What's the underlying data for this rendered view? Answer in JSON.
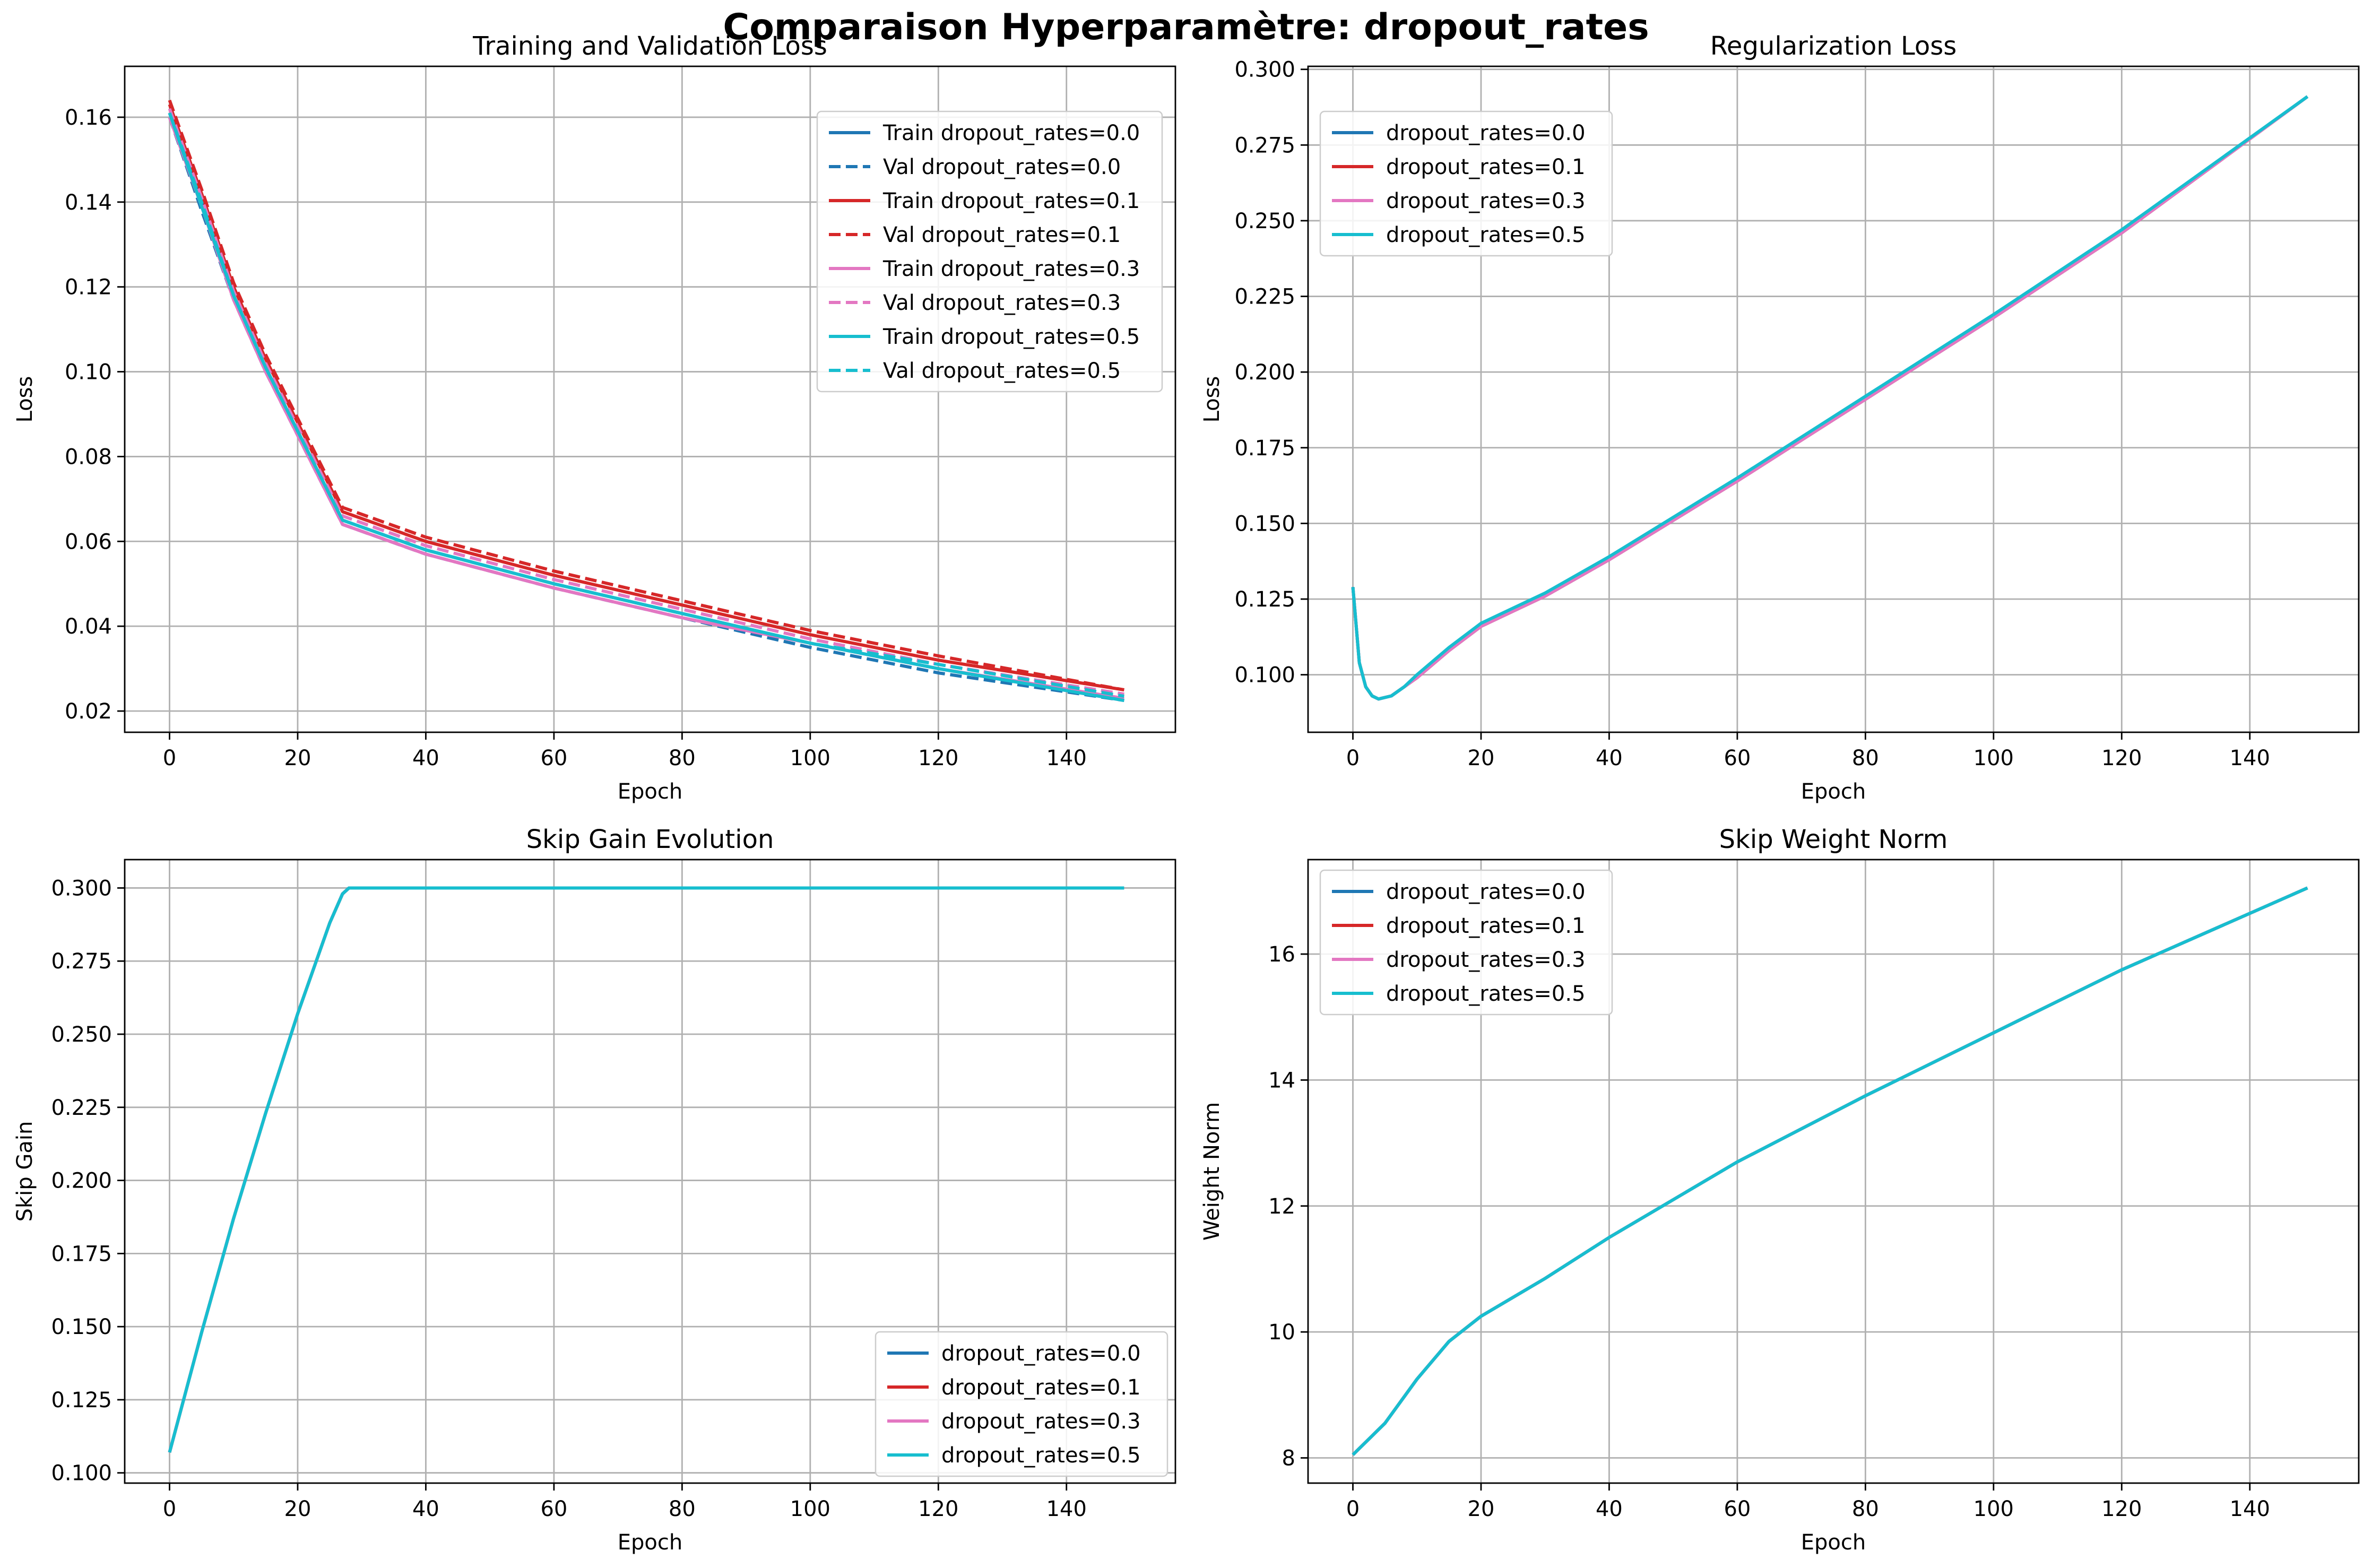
{
  "suptitle": "Comparaison Hyperparamètre: dropout_rates",
  "colors": {
    "d00": "#1f77b4",
    "d01": "#d62728",
    "d03": "#e377c2",
    "d05": "#17becf"
  },
  "chart_data": [
    {
      "id": "loss",
      "type": "line",
      "title": "Training and Validation Loss",
      "xlabel": "Epoch",
      "ylabel": "Loss",
      "xlim": [
        -7,
        157
      ],
      "ylim": [
        0.015,
        0.172
      ],
      "xticks": [
        0,
        20,
        40,
        60,
        80,
        100,
        120,
        140
      ],
      "yticks": [
        0.02,
        0.04,
        0.06,
        0.08,
        0.1,
        0.12,
        0.14,
        0.16
      ],
      "ytick_labels": [
        "0.02",
        "0.04",
        "0.06",
        "0.08",
        "0.10",
        "0.12",
        "0.14",
        "0.16"
      ],
      "grid": true,
      "legend": "top-right",
      "series": [
        {
          "name": "Train dropout_rates=0.0",
          "color": "#1f77b4",
          "style": "solid",
          "x": [
            0,
            5,
            10,
            15,
            20,
            27,
            40,
            60,
            80,
            100,
            120,
            149
          ],
          "y": [
            0.161,
            0.14,
            0.118,
            0.101,
            0.086,
            0.065,
            0.058,
            0.05,
            0.043,
            0.036,
            0.03,
            0.0225
          ]
        },
        {
          "name": "Val dropout_rates=0.0",
          "color": "#1f77b4",
          "style": "dashed",
          "x": [
            0,
            5,
            10,
            15,
            20,
            27,
            40,
            60,
            80,
            100,
            120,
            149
          ],
          "y": [
            0.16,
            0.138,
            0.117,
            0.1,
            0.085,
            0.064,
            0.057,
            0.049,
            0.042,
            0.035,
            0.029,
            0.0225
          ]
        },
        {
          "name": "Train dropout_rates=0.1",
          "color": "#d62728",
          "style": "solid",
          "x": [
            0,
            5,
            10,
            15,
            20,
            27,
            40,
            60,
            80,
            100,
            120,
            149
          ],
          "y": [
            0.163,
            0.142,
            0.12,
            0.103,
            0.088,
            0.067,
            0.06,
            0.052,
            0.045,
            0.038,
            0.032,
            0.025
          ]
        },
        {
          "name": "Val dropout_rates=0.1",
          "color": "#d62728",
          "style": "dashed",
          "x": [
            0,
            5,
            10,
            15,
            20,
            27,
            40,
            60,
            80,
            100,
            120,
            149
          ],
          "y": [
            0.164,
            0.143,
            0.121,
            0.104,
            0.089,
            0.068,
            0.061,
            0.053,
            0.046,
            0.039,
            0.033,
            0.025
          ]
        },
        {
          "name": "Train dropout_rates=0.3",
          "color": "#e377c2",
          "style": "solid",
          "x": [
            0,
            5,
            10,
            15,
            20,
            27,
            40,
            60,
            80,
            100,
            120,
            149
          ],
          "y": [
            0.16,
            0.139,
            0.117,
            0.1,
            0.085,
            0.064,
            0.057,
            0.049,
            0.042,
            0.036,
            0.03,
            0.023
          ]
        },
        {
          "name": "Val dropout_rates=0.3",
          "color": "#e377c2",
          "style": "dashed",
          "x": [
            0,
            5,
            10,
            15,
            20,
            27,
            40,
            60,
            80,
            100,
            120,
            149
          ],
          "y": [
            0.162,
            0.141,
            0.119,
            0.102,
            0.087,
            0.066,
            0.059,
            0.051,
            0.044,
            0.037,
            0.031,
            0.024
          ]
        },
        {
          "name": "Train dropout_rates=0.5",
          "color": "#17becf",
          "style": "solid",
          "x": [
            0,
            5,
            10,
            15,
            20,
            27,
            40,
            60,
            80,
            100,
            120,
            149
          ],
          "y": [
            0.161,
            0.139,
            0.118,
            0.101,
            0.086,
            0.065,
            0.058,
            0.05,
            0.043,
            0.036,
            0.03,
            0.0225
          ]
        },
        {
          "name": "Val dropout_rates=0.5",
          "color": "#17becf",
          "style": "dashed",
          "x": [
            0,
            5,
            10,
            15,
            20,
            27,
            40,
            60,
            80,
            100,
            120,
            149
          ],
          "y": [
            0.161,
            0.14,
            0.118,
            0.101,
            0.086,
            0.065,
            0.058,
            0.05,
            0.043,
            0.036,
            0.031,
            0.0235
          ]
        }
      ]
    },
    {
      "id": "reg",
      "type": "line",
      "title": "Regularization Loss",
      "xlabel": "Epoch",
      "ylabel": "Loss",
      "xlim": [
        -7,
        157
      ],
      "ylim": [
        0.081,
        0.301
      ],
      "xticks": [
        0,
        20,
        40,
        60,
        80,
        100,
        120,
        140
      ],
      "yticks": [
        0.1,
        0.125,
        0.15,
        0.175,
        0.2,
        0.225,
        0.25,
        0.275,
        0.3
      ],
      "ytick_labels": [
        "0.100",
        "0.125",
        "0.150",
        "0.175",
        "0.200",
        "0.225",
        "0.250",
        "0.275",
        "0.300"
      ],
      "grid": true,
      "legend": "top-left",
      "series": [
        {
          "name": "dropout_rates=0.0",
          "color": "#1f77b4",
          "style": "solid",
          "x": [
            0,
            1,
            2,
            3,
            4,
            6,
            8,
            10,
            15,
            20,
            25,
            30,
            40,
            60,
            80,
            100,
            120,
            149
          ],
          "y": [
            0.129,
            0.104,
            0.096,
            0.093,
            0.092,
            0.093,
            0.096,
            0.099,
            0.108,
            0.116,
            0.121,
            0.126,
            0.138,
            0.164,
            0.191,
            0.218,
            0.246,
            0.291
          ]
        },
        {
          "name": "dropout_rates=0.1",
          "color": "#d62728",
          "style": "solid",
          "x": [
            0,
            1,
            2,
            3,
            4,
            6,
            8,
            10,
            15,
            20,
            25,
            30,
            40,
            60,
            80,
            100,
            120,
            149
          ],
          "y": [
            0.129,
            0.104,
            0.096,
            0.093,
            0.092,
            0.093,
            0.096,
            0.099,
            0.108,
            0.116,
            0.121,
            0.126,
            0.138,
            0.164,
            0.191,
            0.218,
            0.246,
            0.291
          ]
        },
        {
          "name": "dropout_rates=0.3",
          "color": "#e377c2",
          "style": "solid",
          "x": [
            0,
            1,
            2,
            3,
            4,
            6,
            8,
            10,
            15,
            20,
            25,
            30,
            40,
            60,
            80,
            100,
            120,
            149
          ],
          "y": [
            0.129,
            0.104,
            0.096,
            0.093,
            0.092,
            0.093,
            0.096,
            0.099,
            0.108,
            0.116,
            0.121,
            0.126,
            0.138,
            0.164,
            0.191,
            0.218,
            0.246,
            0.291
          ]
        },
        {
          "name": "dropout_rates=0.5",
          "color": "#17becf",
          "style": "solid",
          "x": [
            0,
            1,
            2,
            3,
            4,
            6,
            8,
            10,
            15,
            20,
            25,
            30,
            40,
            60,
            80,
            100,
            120,
            149
          ],
          "y": [
            0.129,
            0.104,
            0.096,
            0.093,
            0.092,
            0.093,
            0.096,
            0.1,
            0.109,
            0.117,
            0.122,
            0.127,
            0.139,
            0.165,
            0.192,
            0.219,
            0.247,
            0.291
          ]
        }
      ]
    },
    {
      "id": "skip",
      "type": "line",
      "title": "Skip Gain Evolution",
      "xlabel": "Epoch",
      "ylabel": "Skip Gain",
      "xlim": [
        -7,
        157
      ],
      "ylim": [
        0.0965,
        0.3097
      ],
      "xticks": [
        0,
        20,
        40,
        60,
        80,
        100,
        120,
        140
      ],
      "yticks": [
        0.1,
        0.125,
        0.15,
        0.175,
        0.2,
        0.225,
        0.25,
        0.275,
        0.3
      ],
      "ytick_labels": [
        "0.100",
        "0.125",
        "0.150",
        "0.175",
        "0.200",
        "0.225",
        "0.250",
        "0.275",
        "0.300"
      ],
      "grid": true,
      "legend": "bottom-right",
      "series": [
        {
          "name": "dropout_rates=0.0",
          "color": "#1f77b4",
          "style": "solid",
          "x": [
            0,
            5,
            10,
            15,
            20,
            25,
            27,
            28,
            149
          ],
          "y": [
            0.107,
            0.148,
            0.187,
            0.223,
            0.257,
            0.288,
            0.298,
            0.3,
            0.3
          ]
        },
        {
          "name": "dropout_rates=0.1",
          "color": "#d62728",
          "style": "solid",
          "x": [
            0,
            5,
            10,
            15,
            20,
            25,
            27,
            28,
            149
          ],
          "y": [
            0.107,
            0.148,
            0.187,
            0.223,
            0.257,
            0.288,
            0.298,
            0.3,
            0.3
          ]
        },
        {
          "name": "dropout_rates=0.3",
          "color": "#e377c2",
          "style": "solid",
          "x": [
            0,
            5,
            10,
            15,
            20,
            25,
            27,
            28,
            149
          ],
          "y": [
            0.107,
            0.148,
            0.187,
            0.223,
            0.257,
            0.288,
            0.298,
            0.3,
            0.3
          ]
        },
        {
          "name": "dropout_rates=0.5",
          "color": "#17becf",
          "style": "solid",
          "x": [
            0,
            5,
            10,
            15,
            20,
            25,
            27,
            28,
            149
          ],
          "y": [
            0.107,
            0.148,
            0.187,
            0.223,
            0.257,
            0.288,
            0.298,
            0.3,
            0.3
          ]
        }
      ]
    },
    {
      "id": "norm",
      "type": "line",
      "title": "Skip Weight Norm",
      "xlabel": "Epoch",
      "ylabel": "Weight Norm",
      "xlim": [
        -7,
        157
      ],
      "ylim": [
        7.6,
        17.5
      ],
      "xticks": [
        0,
        20,
        40,
        60,
        80,
        100,
        120,
        140
      ],
      "yticks": [
        8,
        10,
        12,
        14,
        16
      ],
      "ytick_labels": [
        "8",
        "10",
        "12",
        "14",
        "16"
      ],
      "grid": true,
      "legend": "top-left",
      "series": [
        {
          "name": "dropout_rates=0.0",
          "color": "#1f77b4",
          "style": "solid",
          "x": [
            0,
            5,
            10,
            15,
            20,
            30,
            40,
            60,
            80,
            100,
            120,
            149
          ],
          "y": [
            8.05,
            8.55,
            9.25,
            9.85,
            10.25,
            10.85,
            11.5,
            12.7,
            13.75,
            14.75,
            15.75,
            17.05
          ]
        },
        {
          "name": "dropout_rates=0.1",
          "color": "#d62728",
          "style": "solid",
          "x": [
            0,
            5,
            10,
            15,
            20,
            30,
            40,
            60,
            80,
            100,
            120,
            149
          ],
          "y": [
            8.05,
            8.55,
            9.25,
            9.85,
            10.25,
            10.85,
            11.5,
            12.7,
            13.75,
            14.75,
            15.75,
            17.05
          ]
        },
        {
          "name": "dropout_rates=0.3",
          "color": "#e377c2",
          "style": "solid",
          "x": [
            0,
            5,
            10,
            15,
            20,
            30,
            40,
            60,
            80,
            100,
            120,
            149
          ],
          "y": [
            8.05,
            8.55,
            9.25,
            9.85,
            10.25,
            10.85,
            11.5,
            12.7,
            13.75,
            14.75,
            15.75,
            17.05
          ]
        },
        {
          "name": "dropout_rates=0.5",
          "color": "#17becf",
          "style": "solid",
          "x": [
            0,
            5,
            10,
            15,
            20,
            30,
            40,
            60,
            80,
            100,
            120,
            149
          ],
          "y": [
            8.05,
            8.55,
            9.25,
            9.85,
            10.25,
            10.85,
            11.5,
            12.7,
            13.75,
            14.75,
            15.75,
            17.05
          ]
        }
      ]
    }
  ]
}
